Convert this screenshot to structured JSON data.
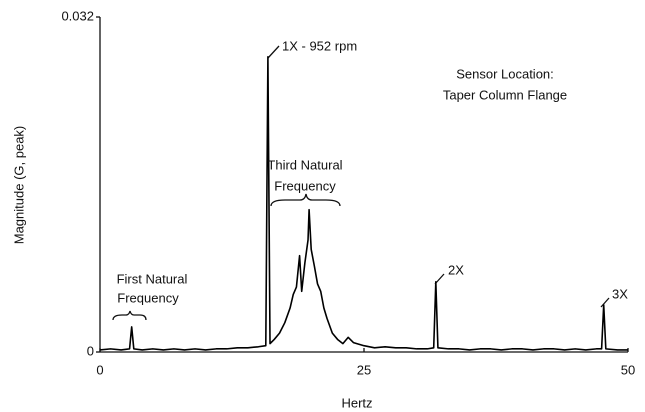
{
  "chart_data": {
    "type": "line",
    "x_label": "Hertz",
    "y_label": "Magnitude (G, peak)",
    "xlim": [
      0,
      50
    ],
    "xticks": [
      0,
      25,
      50
    ],
    "ylim": [
      0,
      0.032
    ],
    "yticks": [
      0,
      0.032
    ],
    "grid": false,
    "color": "#000000",
    "x": [
      0,
      1,
      2,
      2.8,
      3.0,
      3.2,
      4,
      5,
      6,
      7,
      8,
      9,
      10,
      11,
      12,
      13,
      14,
      15,
      15.7,
      15.9,
      16.1,
      16.5,
      17,
      17.5,
      18,
      18.3,
      18.6,
      18.9,
      19.1,
      19.4,
      19.7,
      19.8,
      20.0,
      20.3,
      20.6,
      20.9,
      21.2,
      21.5,
      22,
      22.5,
      23,
      23.5,
      24,
      25,
      26,
      27,
      28,
      29,
      30,
      31,
      31.6,
      31.8,
      32.0,
      33,
      34,
      35,
      36,
      37,
      38,
      39,
      40,
      41,
      42,
      43,
      44,
      45,
      46,
      47,
      47.5,
      47.7,
      47.9,
      49,
      50
    ],
    "values": [
      0.0002,
      0.0003,
      0.0002,
      0.0003,
      0.0024,
      0.0003,
      0.0002,
      0.0003,
      0.0002,
      0.0003,
      0.0002,
      0.0003,
      0.0002,
      0.0003,
      0.0003,
      0.0004,
      0.0004,
      0.0005,
      0.0006,
      0.0282,
      0.0008,
      0.0012,
      0.0018,
      0.0028,
      0.0042,
      0.0055,
      0.0062,
      0.0092,
      0.0058,
      0.0085,
      0.0107,
      0.0136,
      0.0098,
      0.0082,
      0.0065,
      0.0058,
      0.0042,
      0.0032,
      0.0018,
      0.0012,
      0.0008,
      0.0014,
      0.0009,
      0.0006,
      0.0004,
      0.0005,
      0.0004,
      0.0004,
      0.0003,
      0.0003,
      0.0004,
      0.0067,
      0.0004,
      0.0003,
      0.0003,
      0.0002,
      0.0003,
      0.0003,
      0.0002,
      0.0003,
      0.0003,
      0.0002,
      0.0003,
      0.0003,
      0.0002,
      0.0003,
      0.0002,
      0.0003,
      0.0003,
      0.0045,
      0.0003,
      0.0002,
      0.0002
    ],
    "annotations": [
      "1X - 952 rpm",
      "Sensor Location:",
      "Taper Column Flange",
      "Third Natural",
      "Frequency",
      "First Natural",
      "Frequency",
      "2X",
      "3X"
    ]
  }
}
